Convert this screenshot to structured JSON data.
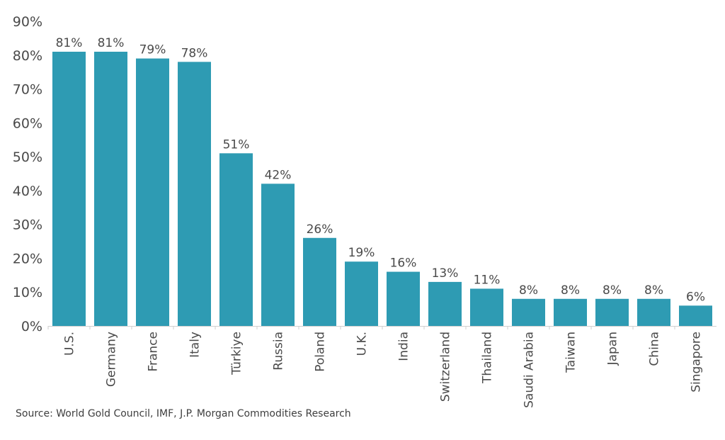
{
  "chart_data": {
    "type": "bar",
    "categories": [
      "U.S.",
      "Germany",
      "France",
      "Italy",
      "Türkiye",
      "Russia",
      "Poland",
      "U.K.",
      "India",
      "Switzerland",
      "Thailand",
      "Saudi Arabia",
      "Taiwan",
      "Japan",
      "China",
      "Singapore"
    ],
    "values": [
      81,
      81,
      79,
      78,
      51,
      42,
      26,
      19,
      16,
      13,
      11,
      8,
      8,
      8,
      8,
      6
    ],
    "data_labels": [
      "81%",
      "81%",
      "79%",
      "78%",
      "51%",
      "42%",
      "26%",
      "19%",
      "16%",
      "13%",
      "11%",
      "8%",
      "8%",
      "8%",
      "8%",
      "6%"
    ],
    "yticks": [
      0,
      10,
      20,
      30,
      40,
      50,
      60,
      70,
      80,
      90
    ],
    "ytick_labels": [
      "0%",
      "10%",
      "20%",
      "30%",
      "40%",
      "50%",
      "60%",
      "70%",
      "80%",
      "90%"
    ],
    "ylim": [
      0,
      90
    ],
    "grid": false,
    "legend": "none",
    "bar_color": "#2e9bb3",
    "title": "",
    "xlabel": "",
    "ylabel": ""
  },
  "source": "Source: World Gold Council, IMF, J.P. Morgan Commodities Research"
}
